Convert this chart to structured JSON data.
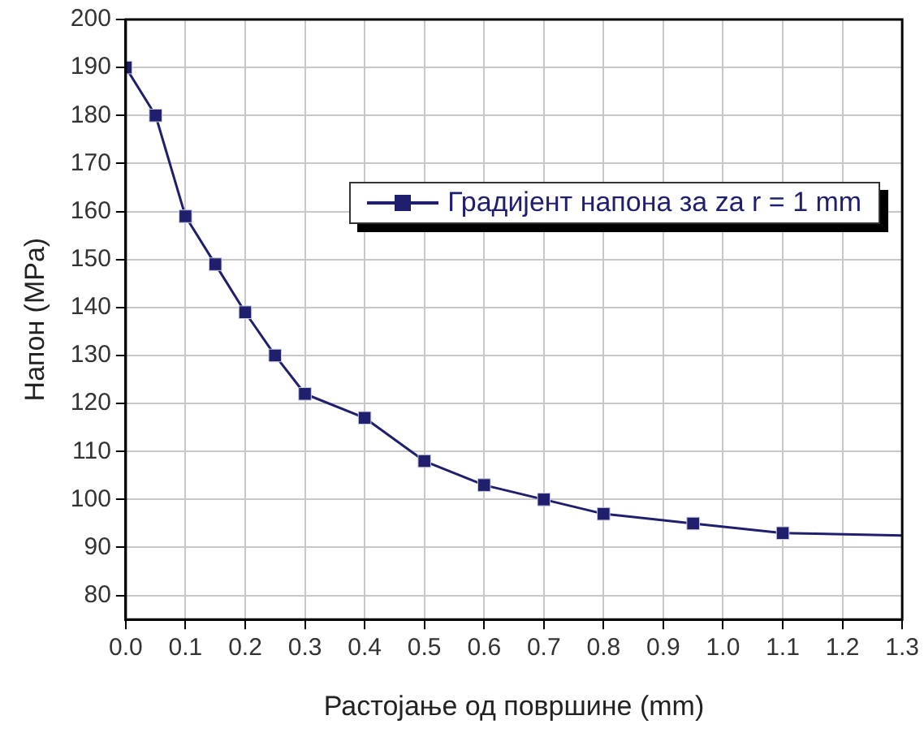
{
  "chart_data": {
    "type": "line",
    "xlabel": "Растојање од површине (mm)",
    "ylabel": "Напон (MPa)",
    "xlim": [
      0,
      1.3
    ],
    "xticks": [
      {
        "value": 0,
        "label": "0.0"
      },
      0.1,
      0.2,
      0.3,
      0.4,
      0.5,
      0.6,
      0.7,
      0.8,
      0.9,
      {
        "value": 1,
        "label": "1.0"
      },
      1.1,
      1.2,
      1.3
    ],
    "ylim": [
      75,
      200
    ],
    "yticks": [
      80,
      90,
      100,
      110,
      120,
      130,
      140,
      150,
      160,
      170,
      180,
      190,
      200
    ],
    "grid": true,
    "legend": "top right",
    "line_style": "solid",
    "series": [
      {
        "name": "Градијент напона за za r = 1 mm",
        "color": "#1f1f6e",
        "marker": "square",
        "x": [
          0,
          0.05,
          0.1,
          0.15,
          0.2,
          0.25,
          0.3,
          0.4,
          0.5,
          0.6,
          0.7,
          0.8,
          0.95,
          1.1
        ],
        "values": [
          190,
          180,
          159,
          149,
          139,
          130,
          122,
          117,
          108,
          103,
          100,
          97,
          95,
          93
        ]
      },
      {
        "color": "#1f1f6e",
        "marker": "none",
        "x": [
          1.1,
          1.3
        ],
        "values": [
          93,
          92.5
        ]
      }
    ]
  }
}
